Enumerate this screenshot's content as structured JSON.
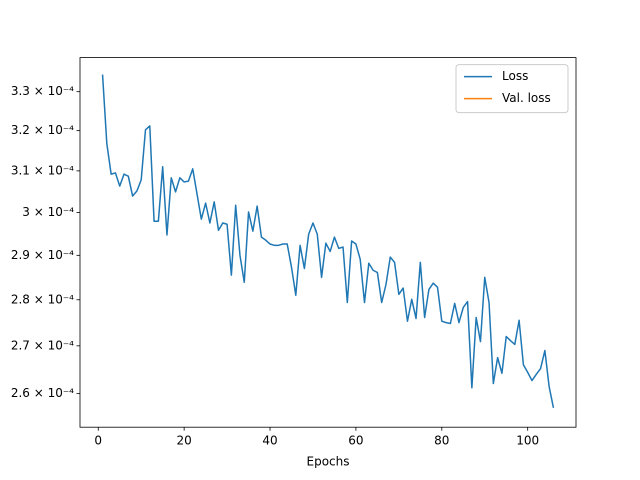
{
  "chart_data": {
    "type": "line",
    "xlabel": "Epochs",
    "log_y": true,
    "legend": "upper right",
    "grid": false,
    "x": [
      1,
      2,
      3,
      4,
      5,
      6,
      7,
      8,
      9,
      10,
      11,
      12,
      13,
      14,
      15,
      16,
      17,
      18,
      19,
      20,
      21,
      22,
      23,
      24,
      25,
      26,
      27,
      28,
      29,
      30,
      31,
      32,
      33,
      34,
      35,
      36,
      37,
      38,
      39,
      40,
      41,
      42,
      43,
      44,
      45,
      46,
      47,
      48,
      49,
      50,
      51,
      52,
      53,
      54,
      55,
      56,
      57,
      58,
      59,
      60,
      61,
      62,
      63,
      64,
      65,
      66,
      67,
      68,
      69,
      70,
      71,
      72,
      73,
      74,
      75,
      76,
      77,
      78,
      79,
      80,
      81,
      82,
      83,
      84,
      85,
      86,
      87,
      88,
      89,
      90,
      91,
      92,
      93,
      94,
      95,
      96,
      97,
      98,
      99,
      100,
      101,
      102,
      103,
      104,
      105,
      106
    ],
    "series": [
      {
        "name": "Loss",
        "color": "#1f77b4",
        "values": [
          0.0003345,
          0.0003167,
          0.0003092,
          0.0003095,
          0.0003063,
          0.0003092,
          0.0003087,
          0.0003039,
          0.0003051,
          0.0003078,
          0.0003202,
          0.0003212,
          0.0002979,
          0.0002979,
          0.000311,
          0.0002947,
          0.0003083,
          0.0003049,
          0.0003083,
          0.0003073,
          0.0003075,
          0.0003105,
          0.0003044,
          0.0002984,
          0.0003022,
          0.0002975,
          0.0003025,
          0.0002958,
          0.0002975,
          0.0002972,
          0.0002855,
          0.0003017,
          0.00029,
          0.0002839,
          0.0003001,
          0.0002956,
          0.0003015,
          0.0002942,
          0.0002935,
          0.0002926,
          0.0002923,
          0.0002923,
          0.0002926,
          0.0002926,
          0.0002873,
          0.000281,
          0.0002923,
          0.000287,
          0.0002949,
          0.0002975,
          0.0002949,
          0.000285,
          0.0002928,
          0.0002909,
          0.0002942,
          0.0002916,
          0.0002919,
          0.0002794,
          0.0002933,
          0.0002926,
          0.0002891,
          0.0002794,
          0.0002882,
          0.0002866,
          0.0002861,
          0.0002794,
          0.0002834,
          0.0002896,
          0.0002884,
          0.0002812,
          0.0002826,
          0.0002753,
          0.0002801,
          0.0002759,
          0.0002884,
          0.0002761,
          0.0002823,
          0.0002837,
          0.0002828,
          0.0002753,
          0.000275,
          0.0002748,
          0.0002792,
          0.000275,
          0.0002783,
          0.0002796,
          0.0002612,
          0.0002761,
          0.0002709,
          0.000285,
          0.0002794,
          0.0002621,
          0.0002675,
          0.0002642,
          0.000272,
          0.0002711,
          0.0002703,
          0.0002755,
          0.000266,
          0.0002644,
          0.0002627,
          0.000264,
          0.0002652,
          0.000269,
          0.0002614,
          0.0002571
        ]
      },
      {
        "name": "Val. loss",
        "color": "#ff7f0e",
        "values": [
          null,
          null,
          null,
          null,
          null,
          null,
          null,
          null,
          null,
          null,
          null,
          null,
          null,
          null,
          null,
          null,
          null,
          null,
          null,
          null,
          null,
          null,
          null,
          null,
          null,
          null,
          null,
          null,
          null,
          null,
          null,
          null,
          null,
          null,
          null,
          null,
          null,
          null,
          null,
          null,
          null,
          null,
          null,
          null,
          null,
          null,
          null,
          null,
          null,
          null,
          null,
          null,
          null,
          null,
          null,
          null,
          null,
          null,
          null,
          null,
          null,
          null,
          null,
          null,
          null,
          null,
          null,
          null,
          null,
          null,
          null,
          null,
          null,
          null,
          null,
          null,
          null,
          null,
          null,
          null,
          null,
          null,
          null,
          null,
          null,
          null,
          null,
          null,
          null,
          null,
          null,
          null,
          null,
          null,
          null,
          null,
          null,
          null,
          null,
          null,
          null,
          null,
          null,
          null,
          null,
          null
        ]
      }
    ],
    "xlim": [
      -4.25,
      111.25
    ],
    "xticks": [
      0,
      20,
      40,
      60,
      80,
      100
    ],
    "ylim": [
      0.0002532,
      0.000339
    ],
    "yticks": [
      {
        "value": 0.00026,
        "label": "2.6 × 10⁻⁴"
      },
      {
        "value": 0.00027,
        "label": "2.7 × 10⁻⁴"
      },
      {
        "value": 0.00028,
        "label": "2.8 × 10⁻⁴"
      },
      {
        "value": 0.00029,
        "label": "2.9 × 10⁻⁴"
      },
      {
        "value": 0.0003,
        "label": "3 × 10⁻⁴"
      },
      {
        "value": 0.00031,
        "label": "3.1 × 10⁻⁴"
      },
      {
        "value": 0.00032,
        "label": "3.2 × 10⁻⁴"
      },
      {
        "value": 0.00033,
        "label": "3.3 × 10⁻⁴"
      }
    ]
  }
}
